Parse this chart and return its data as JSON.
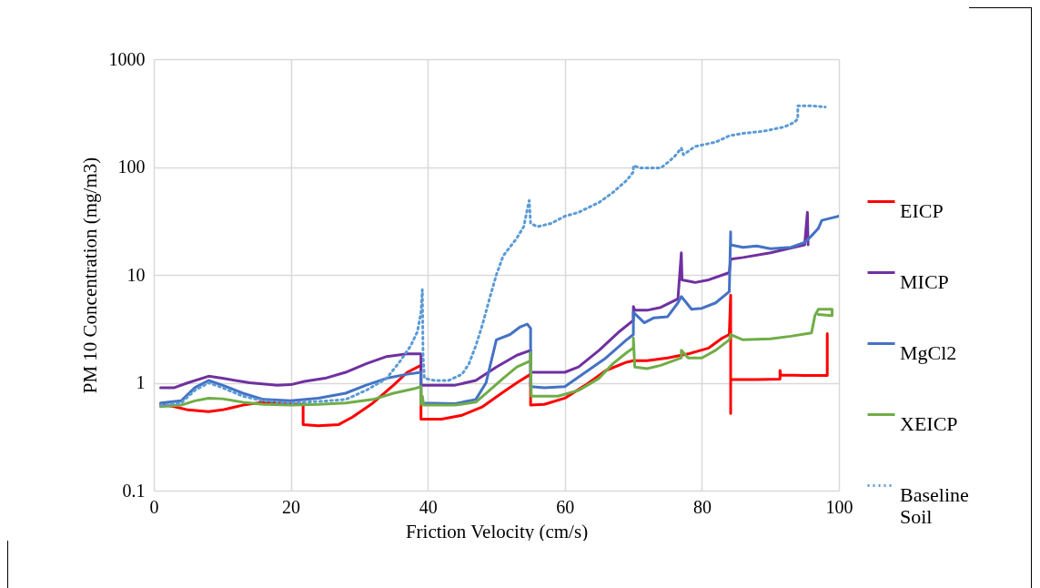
{
  "chart_data": {
    "type": "line",
    "xlabel": "Friction Velocity (cm/s)",
    "ylabel": "PM 10 Concentration (mg/m3)",
    "xlim": [
      0,
      100
    ],
    "xticks": [
      0,
      20,
      40,
      60,
      80,
      100
    ],
    "ylim": [
      0.1,
      1000
    ],
    "yticks": [
      0.1,
      1,
      10,
      100,
      1000
    ],
    "log": true,
    "grid": true,
    "legend": "right",
    "marker": "none",
    "series": [
      {
        "name": "EICP",
        "color": "#ff0000",
        "line_style": "solid",
        "x": [
          1,
          3,
          5,
          8,
          10,
          13,
          16,
          20,
          21.8,
          21.8,
          24,
          27,
          29,
          32,
          35,
          37,
          39,
          39,
          42,
          45,
          48,
          51,
          53,
          55,
          55,
          57,
          60,
          63,
          66,
          69,
          70,
          72,
          75,
          78,
          81,
          83,
          84,
          84.2,
          84.2,
          84.2,
          88,
          91.4,
          91.4,
          91.5,
          95,
          98.3,
          98.3
        ],
        "values": [
          0.63,
          0.6,
          0.56,
          0.54,
          0.56,
          0.62,
          0.66,
          0.64,
          0.63,
          0.41,
          0.4,
          0.41,
          0.48,
          0.65,
          0.95,
          1.25,
          1.45,
          0.46,
          0.46,
          0.5,
          0.6,
          0.82,
          1,
          1.2,
          0.62,
          0.63,
          0.72,
          0.95,
          1.3,
          1.55,
          1.6,
          1.6,
          1.7,
          1.85,
          2.1,
          2.6,
          2.8,
          6.5,
          0.52,
          1.07,
          1.07,
          1.08,
          1.3,
          1.18,
          1.17,
          1.17,
          2.85
        ]
      },
      {
        "name": "MICP",
        "color": "#7030a0",
        "line_style": "solid",
        "x": [
          1,
          3,
          5,
          8,
          10,
          14,
          18,
          20,
          22,
          25,
          28,
          31,
          34,
          37,
          39,
          39,
          44,
          47,
          50,
          53,
          55,
          55,
          60,
          62,
          65,
          68,
          70,
          70,
          70.2,
          72,
          74,
          76.5,
          77,
          77.1,
          79,
          81,
          84,
          84.2,
          86,
          90,
          95,
          95.4,
          95.5
        ],
        "values": [
          0.9,
          0.9,
          1,
          1.15,
          1.1,
          1,
          0.95,
          0.96,
          1.03,
          1.1,
          1.25,
          1.5,
          1.75,
          1.85,
          1.85,
          0.95,
          0.95,
          1.05,
          1.4,
          1.8,
          2,
          1.25,
          1.25,
          1.4,
          2,
          3,
          3.8,
          5.1,
          4.7,
          4.7,
          5,
          6,
          16,
          9,
          8.5,
          9,
          10.5,
          14,
          14.5,
          16,
          19,
          38,
          19
        ]
      },
      {
        "name": "MgCl2",
        "color": "#4472c4",
        "line_style": "solid",
        "x": [
          1,
          4,
          6,
          8,
          10,
          13,
          16,
          20,
          24,
          28,
          31,
          34,
          37,
          39,
          39,
          44,
          47,
          48.5,
          50,
          52,
          53.5,
          54.5,
          55,
          55,
          57,
          60,
          63,
          66,
          69,
          70,
          70,
          71.6,
          73,
          75,
          76.5,
          77,
          78.5,
          80,
          82,
          84,
          84.2,
          84.2,
          86,
          88,
          90,
          93,
          95,
          96,
          97,
          97.5,
          100
        ],
        "values": [
          0.65,
          0.68,
          0.9,
          1.05,
          0.95,
          0.8,
          0.7,
          0.68,
          0.72,
          0.8,
          0.95,
          1.1,
          1.2,
          1.25,
          0.65,
          0.64,
          0.7,
          1,
          2.5,
          2.8,
          3.3,
          3.5,
          3.2,
          0.92,
          0.9,
          0.92,
          1.25,
          1.7,
          2.5,
          2.8,
          4.5,
          3.6,
          4,
          4.1,
          5.5,
          6.3,
          4.8,
          4.9,
          5.5,
          7,
          25,
          19,
          18,
          18.5,
          17.5,
          18,
          20,
          23,
          27,
          32,
          35
        ]
      },
      {
        "name": "XEICP",
        "color": "#70ad47",
        "line_style": "solid",
        "x": [
          1,
          4,
          6,
          8,
          10,
          13,
          16,
          20,
          24,
          28,
          32,
          35,
          38,
          39,
          39,
          39.2,
          39.4,
          44,
          47,
          49,
          51,
          53,
          55,
          55,
          55.1,
          59,
          62,
          65,
          67,
          69,
          70,
          70,
          70.2,
          72,
          74,
          77,
          77,
          78,
          80,
          82,
          84,
          84.2,
          86,
          90,
          93,
          96,
          96.5,
          97,
          99,
          99,
          97
        ],
        "values": [
          0.6,
          0.62,
          0.68,
          0.72,
          0.71,
          0.66,
          0.63,
          0.62,
          0.63,
          0.65,
          0.7,
          0.8,
          0.88,
          0.92,
          0.63,
          0.75,
          0.62,
          0.62,
          0.66,
          0.85,
          1.1,
          1.4,
          1.6,
          1.9,
          0.75,
          0.75,
          0.85,
          1.1,
          1.5,
          1.9,
          2.1,
          2.6,
          1.4,
          1.35,
          1.45,
          1.7,
          2,
          1.7,
          1.7,
          2,
          2.5,
          2.8,
          2.5,
          2.55,
          2.7,
          2.9,
          4.2,
          4.8,
          4.8,
          4.2,
          4.3
        ]
      },
      {
        "name": "Baseline Soil",
        "color": "#5b9bd5",
        "line_style": "dotted",
        "x": [
          1,
          4,
          6,
          8,
          10,
          13,
          16,
          20,
          24,
          28,
          31,
          34,
          36,
          37.5,
          38.5,
          39,
          39.2,
          39.3,
          39.5,
          41,
          43,
          45,
          46,
          47,
          48,
          49,
          50,
          51,
          53,
          54,
          54.5,
          54.8,
          55,
          56,
          58,
          60,
          62,
          65,
          67,
          69,
          70,
          70,
          71,
          74,
          75,
          76,
          77,
          77.3,
          79,
          82,
          84,
          86,
          89,
          92,
          93.5,
          94,
          94,
          96,
          98
        ],
        "values": [
          0.62,
          0.65,
          0.85,
          1,
          0.9,
          0.75,
          0.68,
          0.65,
          0.67,
          0.7,
          0.85,
          1.1,
          1.6,
          2.2,
          3,
          4.5,
          7.3,
          1.8,
          1.1,
          1.05,
          1.05,
          1.2,
          1.5,
          2.2,
          3.5,
          6,
          10,
          15,
          22,
          28,
          40,
          49,
          30,
          28,
          30,
          35,
          38,
          47,
          58,
          75,
          90,
          103,
          98,
          98,
          110,
          125,
          150,
          130,
          155,
          170,
          195,
          205,
          215,
          235,
          260,
          280,
          370,
          370,
          360
        ]
      }
    ]
  }
}
